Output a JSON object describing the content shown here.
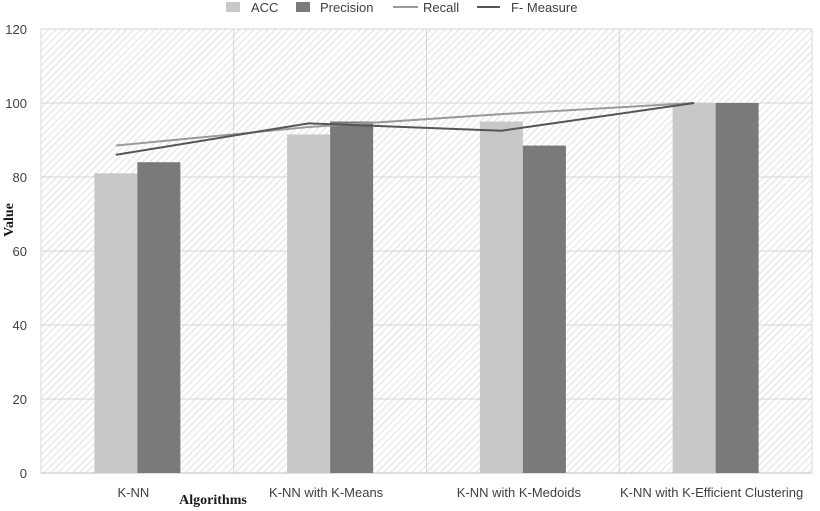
{
  "chart_data": {
    "type": "bar",
    "title": "",
    "xlabel": "Algorithms",
    "ylabel": "Value",
    "ylim": [
      0,
      120
    ],
    "yticks": [
      0,
      20,
      40,
      60,
      80,
      100,
      120
    ],
    "grid": true,
    "legend": "top",
    "categories": [
      "K-NN",
      "K-NN with K-Means",
      "K-NN with K-Medoids",
      "K-NN with K-Efficient Clustering"
    ],
    "series": [
      {
        "name": "ACC",
        "kind": "bar",
        "color": "#c8c8c8",
        "values": [
          81,
          91.5,
          95,
          100
        ]
      },
      {
        "name": "Precision",
        "kind": "bar",
        "color": "#7a7a7a",
        "values": [
          84,
          95,
          88.5,
          100
        ]
      },
      {
        "name": "Recall",
        "kind": "line",
        "color": "#9a9a9a",
        "values": [
          88.5,
          93.5,
          97,
          100
        ]
      },
      {
        "name": "F- Measure",
        "kind": "line",
        "color": "#555555",
        "values": [
          86,
          94.5,
          92.5,
          100
        ]
      }
    ]
  }
}
